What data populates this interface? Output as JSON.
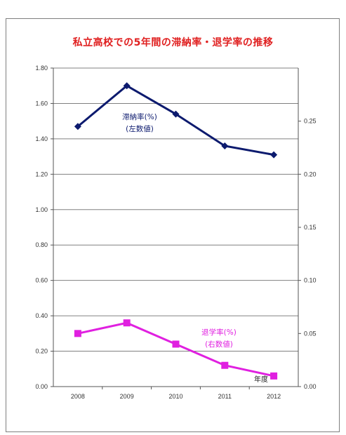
{
  "title": "私立高校での5年間の滞納率・退学率の推移",
  "chart_data": {
    "type": "line",
    "title": "私立高校での5年間の滞納率・退学率の推移",
    "categories": [
      "2008",
      "2009",
      "2010",
      "2011",
      "2012"
    ],
    "xlabel": "年度",
    "y_left": {
      "ylim": [
        0,
        1.8
      ],
      "ticks": [
        "0.00",
        "0.20",
        "0.40",
        "0.60",
        "0.80",
        "1.00",
        "1.20",
        "1.40",
        "1.60",
        "1.80"
      ]
    },
    "y_right": {
      "ylim": [
        0,
        0.3
      ],
      "ticks": [
        "0.00",
        "0.05",
        "0.10",
        "0.15",
        "0.20",
        "0.25"
      ]
    },
    "grid": true,
    "series": [
      {
        "name": "滞納率(%)",
        "name_line2": "(左数値)",
        "axis": "left",
        "color": "#0c1a6e",
        "marker": "diamond",
        "values": [
          1.47,
          1.7,
          1.54,
          1.36,
          1.31
        ]
      },
      {
        "name": "退学率(%)",
        "name_line2": "(右数値)",
        "axis": "right",
        "color": "#e020e0",
        "marker": "square",
        "values": [
          0.05,
          0.06,
          0.04,
          0.02,
          0.01
        ]
      }
    ]
  }
}
